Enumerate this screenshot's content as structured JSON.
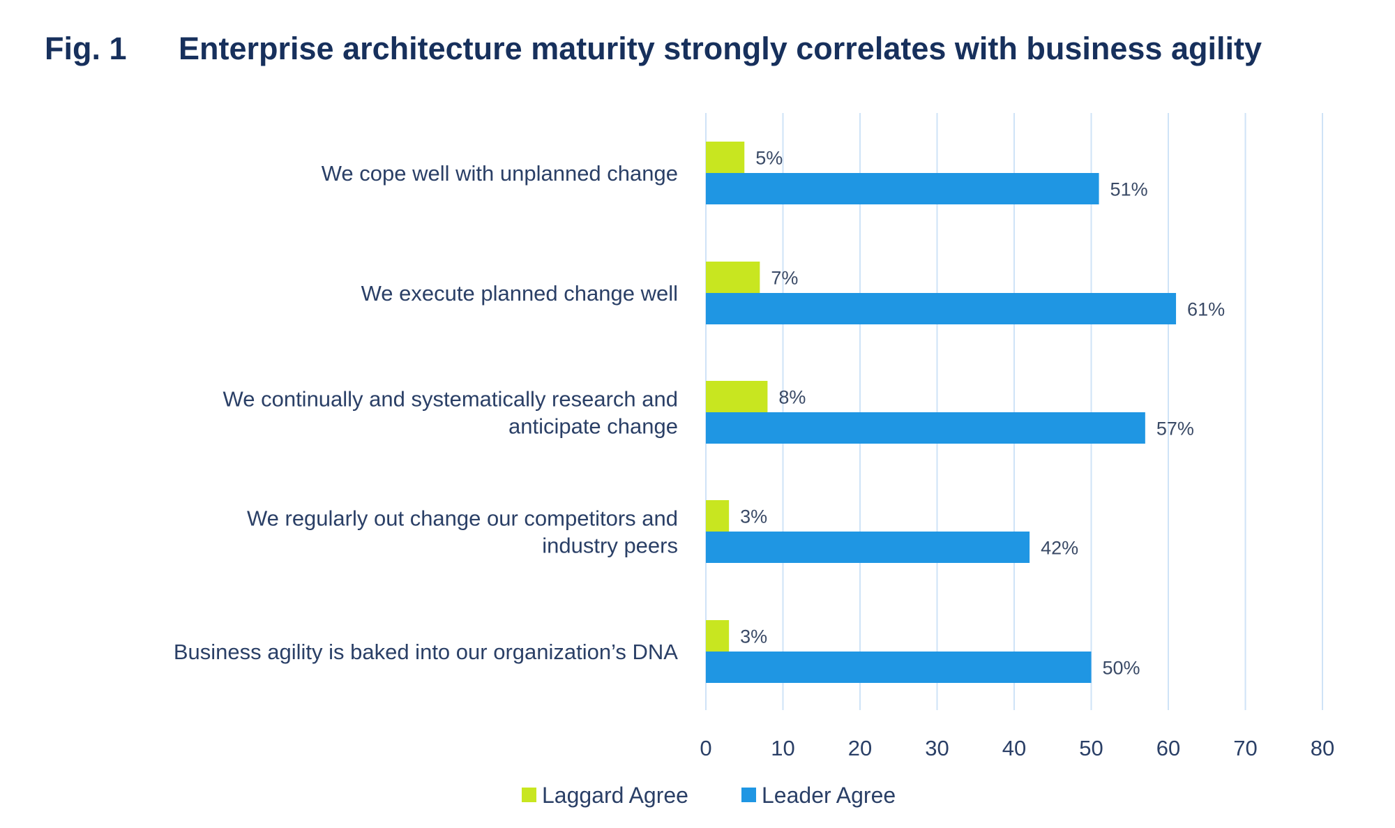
{
  "figure": {
    "label": "Fig. 1",
    "title": "Enterprise architecture maturity strongly correlates with business agility"
  },
  "chart_data": {
    "type": "bar",
    "orientation": "horizontal",
    "title": "Enterprise architecture maturity strongly correlates with business agility",
    "xlabel": "",
    "ylabel": "",
    "xlim": [
      0,
      80
    ],
    "ticks": [
      "0",
      "10",
      "20",
      "30",
      "40",
      "50",
      "60",
      "70",
      "80"
    ],
    "grid": true,
    "legend_position": "bottom",
    "categories": [
      [
        "We cope well with unplanned change"
      ],
      [
        "We execute planned change well"
      ],
      [
        "We continually and systematically research and",
        "anticipate change"
      ],
      [
        "We regularly out change our competitors and",
        "industry peers"
      ],
      [
        "Business agility is baked into our organization’s DNA"
      ]
    ],
    "series": [
      {
        "name": "Laggard Agree",
        "color": "#c8e620",
        "values": [
          5,
          7,
          8,
          3,
          3
        ],
        "labels": [
          "5%",
          "7%",
          "8%",
          "3%",
          "3%"
        ]
      },
      {
        "name": "Leader Agree",
        "color": "#1f96e3",
        "values": [
          51,
          61,
          57,
          42,
          50
        ],
        "labels": [
          "51%",
          "61%",
          "57%",
          "42%",
          "50%"
        ]
      }
    ],
    "gridline_color": "#cfe3f7"
  }
}
